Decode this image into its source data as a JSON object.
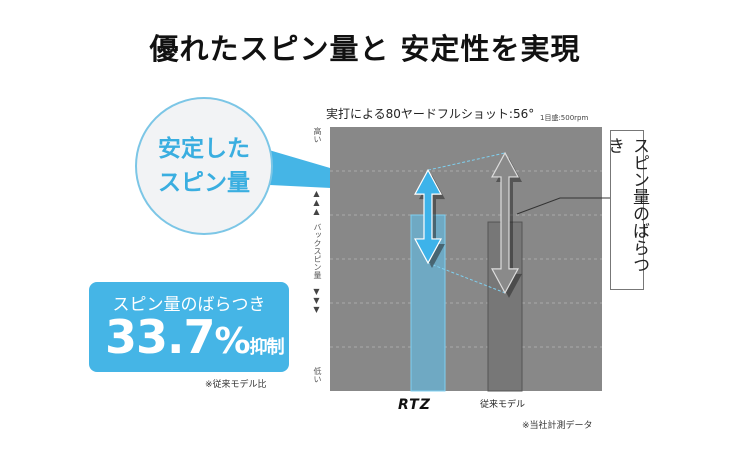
{
  "title": "優れたスピン量と 安定性を実現",
  "callout": {
    "line1": "安定した",
    "line2": "スピン量"
  },
  "stat": {
    "label": "スピン量のばらつき",
    "value": "33.7",
    "unit": "%",
    "suffix": "抑制",
    "note": "※従来モデル比"
  },
  "right_label": "スピン量のばらつき",
  "footnote": "※当社計測データ",
  "colors": {
    "accent": "#45b5e6",
    "plot_bg": "#888888",
    "rtz_bar": "#6fa9c3",
    "conventional_bar": "#777777"
  },
  "chart_data": {
    "type": "bar",
    "title": "実打による80ヤードフルショット:56°",
    "scale_note": "1目盛:500rpm",
    "ylabel": "バックスピン量",
    "y_high_label": "高い",
    "y_low_label": "低い",
    "y_arrows": {
      "up": "▲▲▲",
      "down": "▼▼▼"
    },
    "categories": [
      "RTZ",
      "従来モデル"
    ],
    "values": [
      2000,
      1920
    ],
    "spin_range": [
      [
        1455,
        2510
      ],
      [
        1115,
        2705
      ]
    ],
    "ylim": [
      0,
      3000
    ],
    "grid": true,
    "grid_step": 500
  }
}
